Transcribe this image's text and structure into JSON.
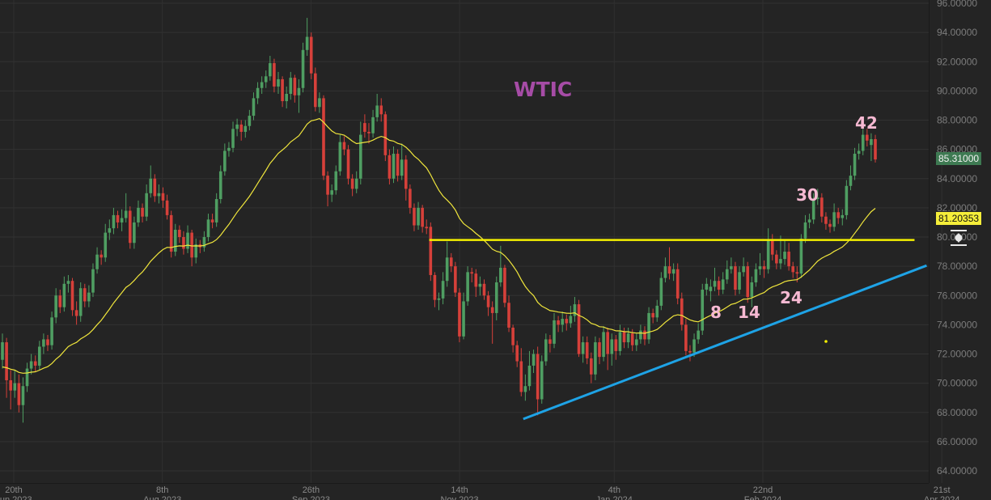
{
  "chart_data": {
    "type": "candlestick",
    "title": "WTIC",
    "ylim": [
      64,
      96
    ],
    "yticks": [
      "96.00000",
      "94.00000",
      "92.00000",
      "90.00000",
      "88.00000",
      "86.00000",
      "84.00000",
      "82.00000",
      "80.00000",
      "78.00000",
      "76.00000",
      "74.00000",
      "72.00000",
      "70.00000",
      "68.00000",
      "66.00000",
      "64.00000"
    ],
    "xticks": [
      {
        "day": "20th",
        "month": "Jun 2023",
        "date": "2023-06-20"
      },
      {
        "day": "8th",
        "month": "Aug 2023",
        "date": "2023-08-08"
      },
      {
        "day": "26th",
        "month": "Sep 2023",
        "date": "2023-09-26"
      },
      {
        "day": "14th",
        "month": "Nov 2023",
        "date": "2023-11-14"
      },
      {
        "day": "4th",
        "month": "Jan 2024",
        "date": "2024-01-04"
      },
      {
        "day": "22nd",
        "month": "Feb 2024",
        "date": "2024-02-22"
      },
      {
        "day": "21st",
        "month": "Apr 2024",
        "date": "2024-04-21"
      }
    ],
    "grid": true,
    "last_price": "85.31000",
    "moving_average_value": "81.20353",
    "colors": {
      "up": "#4f9e62",
      "down": "#d6403a",
      "moving_average": "#f0e63c",
      "resistance": "#f5f000",
      "trendline": "#1ea3e6",
      "title": "#a64ca6",
      "annotations": "#f6b9d2",
      "background": "#242424"
    },
    "resistance_line": {
      "price": 79.8,
      "from": "2023-11-04",
      "to": "2024-04-12"
    },
    "trend_line": {
      "from": {
        "date": "2023-12-05",
        "price": 67.55
      },
      "to": {
        "date": "2024-04-16",
        "price": 78.05
      }
    },
    "annotations": [
      "8",
      "14",
      "24",
      "30",
      "42"
    ],
    "candles": [
      [
        71.6,
        73.4,
        71.0,
        72.8
      ],
      [
        72.8,
        73.1,
        69.0,
        70.2
      ],
      [
        70.2,
        70.9,
        68.2,
        69.5
      ],
      [
        69.5,
        70.9,
        69.0,
        70.0
      ],
      [
        70.0,
        70.6,
        68.0,
        68.5
      ],
      [
        68.5,
        70.4,
        67.3,
        69.8
      ],
      [
        69.8,
        71.4,
        69.4,
        71.0
      ],
      [
        71.0,
        72.0,
        70.6,
        71.5
      ],
      [
        71.5,
        71.9,
        70.8,
        71.2
      ],
      [
        71.2,
        72.9,
        70.9,
        72.5
      ],
      [
        72.5,
        73.4,
        72.0,
        73.0
      ],
      [
        73.0,
        73.3,
        72.2,
        72.6
      ],
      [
        72.6,
        74.9,
        72.3,
        74.5
      ],
      [
        74.5,
        76.5,
        74.1,
        76.0
      ],
      [
        76.0,
        76.4,
        74.8,
        75.2
      ],
      [
        75.2,
        77.3,
        74.9,
        76.8
      ],
      [
        76.8,
        77.4,
        76.2,
        77.0
      ],
      [
        77.0,
        77.2,
        74.6,
        75.0
      ],
      [
        75.0,
        75.6,
        74.0,
        74.6
      ],
      [
        74.6,
        76.9,
        74.2,
        76.5
      ],
      [
        76.5,
        76.8,
        75.2,
        75.6
      ],
      [
        75.6,
        76.7,
        75.2,
        76.2
      ],
      [
        76.2,
        78.2,
        75.9,
        77.8
      ],
      [
        77.8,
        79.3,
        77.5,
        78.8
      ],
      [
        78.8,
        79.1,
        78.1,
        78.6
      ],
      [
        78.6,
        80.9,
        78.3,
        80.3
      ],
      [
        80.3,
        81.2,
        79.8,
        80.6
      ],
      [
        80.6,
        82.0,
        80.2,
        81.5
      ],
      [
        81.5,
        81.8,
        80.6,
        81.0
      ],
      [
        81.0,
        81.9,
        80.4,
        81.3
      ],
      [
        81.3,
        83.0,
        81.0,
        81.8
      ],
      [
        81.8,
        82.1,
        79.2,
        79.6
      ],
      [
        79.6,
        81.4,
        79.2,
        81.0
      ],
      [
        81.0,
        82.5,
        80.7,
        82.0
      ],
      [
        82.0,
        82.3,
        81.0,
        81.4
      ],
      [
        81.4,
        83.6,
        81.1,
        83.0
      ],
      [
        83.0,
        84.9,
        82.7,
        84.0
      ],
      [
        84.0,
        84.3,
        82.4,
        82.8
      ],
      [
        82.8,
        83.6,
        82.3,
        83.0
      ],
      [
        83.0,
        83.4,
        82.0,
        82.5
      ],
      [
        82.5,
        82.9,
        81.2,
        81.5
      ],
      [
        81.5,
        81.8,
        78.6,
        79.0
      ],
      [
        79.0,
        80.9,
        78.7,
        80.5
      ],
      [
        80.5,
        80.8,
        79.6,
        80.0
      ],
      [
        80.0,
        80.4,
        78.8,
        79.2
      ],
      [
        79.2,
        80.8,
        78.9,
        80.3
      ],
      [
        80.3,
        80.5,
        78.0,
        78.6
      ],
      [
        78.6,
        79.9,
        78.2,
        79.5
      ],
      [
        79.5,
        79.8,
        78.9,
        79.3
      ],
      [
        79.3,
        80.4,
        79.0,
        80.0
      ],
      [
        80.0,
        81.6,
        79.7,
        81.2
      ],
      [
        81.2,
        81.6,
        80.6,
        81.0
      ],
      [
        81.0,
        83.0,
        80.7,
        82.6
      ],
      [
        82.6,
        84.9,
        82.3,
        84.5
      ],
      [
        84.5,
        86.4,
        84.2,
        85.9
      ],
      [
        85.9,
        86.5,
        85.5,
        86.1
      ],
      [
        86.1,
        87.9,
        85.8,
        87.4
      ],
      [
        87.4,
        88.1,
        86.9,
        87.7
      ],
      [
        87.7,
        88.0,
        86.6,
        87.2
      ],
      [
        87.2,
        88.0,
        86.8,
        87.6
      ],
      [
        87.6,
        88.7,
        87.3,
        88.3
      ],
      [
        88.3,
        89.9,
        88.0,
        89.5
      ],
      [
        89.5,
        90.6,
        89.1,
        90.2
      ],
      [
        90.2,
        91.0,
        89.8,
        90.6
      ],
      [
        90.6,
        91.4,
        90.2,
        91.0
      ],
      [
        91.0,
        92.4,
        90.7,
        91.9
      ],
      [
        91.9,
        92.2,
        89.9,
        90.3
      ],
      [
        90.3,
        91.3,
        89.8,
        90.8
      ],
      [
        90.8,
        91.0,
        88.9,
        89.3
      ],
      [
        89.3,
        90.3,
        88.8,
        89.8
      ],
      [
        89.8,
        91.3,
        89.4,
        90.9
      ],
      [
        90.9,
        91.1,
        89.2,
        89.7
      ],
      [
        89.7,
        90.8,
        88.5,
        90.2
      ],
      [
        90.2,
        93.3,
        89.9,
        92.8
      ],
      [
        92.8,
        95.0,
        92.4,
        93.7
      ],
      [
        93.7,
        94.0,
        90.8,
        91.2
      ],
      [
        91.2,
        91.6,
        88.6,
        88.9
      ],
      [
        88.9,
        89.9,
        88.5,
        89.5
      ],
      [
        89.5,
        89.7,
        83.9,
        84.2
      ],
      [
        84.2,
        84.5,
        82.1,
        82.9
      ],
      [
        82.9,
        83.6,
        82.4,
        83.2
      ],
      [
        83.2,
        84.9,
        82.9,
        84.5
      ],
      [
        84.5,
        87.0,
        84.2,
        86.5
      ],
      [
        86.5,
        86.9,
        85.6,
        86.0
      ],
      [
        86.0,
        86.3,
        83.6,
        84.0
      ],
      [
        84.0,
        84.3,
        82.8,
        83.3
      ],
      [
        83.3,
        84.5,
        83.0,
        84.0
      ],
      [
        84.0,
        87.9,
        83.6,
        87.0
      ],
      [
        87.8,
        88.4,
        86.8,
        87.2
      ],
      [
        87.2,
        87.8,
        86.4,
        87.1
      ],
      [
        87.1,
        88.7,
        86.8,
        88.2
      ],
      [
        88.2,
        89.8,
        87.9,
        89.0
      ],
      [
        89.0,
        89.5,
        87.9,
        88.4
      ],
      [
        88.4,
        88.6,
        85.2,
        85.6
      ],
      [
        85.6,
        86.0,
        83.6,
        84.0
      ],
      [
        84.0,
        86.2,
        83.7,
        85.7
      ],
      [
        85.7,
        86.0,
        83.8,
        84.2
      ],
      [
        84.2,
        86.4,
        83.9,
        85.3
      ],
      [
        85.3,
        85.6,
        82.5,
        83.3
      ],
      [
        83.3,
        83.6,
        81.6,
        82.0
      ],
      [
        82.0,
        82.3,
        80.4,
        80.8
      ],
      [
        80.8,
        82.4,
        80.5,
        82.0
      ],
      [
        82.0,
        82.2,
        80.3,
        80.7
      ],
      [
        80.7,
        81.2,
        80.2,
        80.6
      ],
      [
        80.7,
        81.0,
        77.0,
        77.4
      ],
      [
        77.4,
        77.6,
        75.2,
        75.7
      ],
      [
        75.7,
        76.2,
        75.0,
        75.8
      ],
      [
        75.8,
        77.6,
        75.4,
        77.0
      ],
      [
        77.0,
        79.7,
        76.6,
        78.6
      ],
      [
        78.6,
        78.9,
        77.6,
        78.0
      ],
      [
        78.0,
        78.3,
        75.9,
        76.2
      ],
      [
        76.2,
        76.5,
        72.8,
        73.2
      ],
      [
        73.2,
        76.2,
        73.0,
        75.6
      ],
      [
        75.6,
        78.0,
        75.3,
        77.6
      ],
      [
        77.6,
        77.9,
        76.9,
        77.5
      ],
      [
        77.5,
        77.8,
        75.9,
        76.6
      ],
      [
        76.6,
        77.3,
        76.0,
        76.8
      ],
      [
        76.8,
        77.1,
        75.7,
        76.0
      ],
      [
        76.0,
        76.3,
        74.6,
        75.2
      ],
      [
        75.2,
        75.6,
        72.7,
        74.8
      ],
      [
        74.8,
        77.3,
        74.3,
        76.9
      ],
      [
        76.9,
        79.4,
        76.6,
        77.9
      ],
      [
        77.9,
        78.1,
        75.2,
        75.5
      ],
      [
        75.5,
        76.0,
        73.5,
        73.8
      ],
      [
        73.8,
        74.0,
        72.1,
        72.6
      ],
      [
        72.6,
        72.9,
        71.1,
        71.5
      ],
      [
        71.5,
        72.4,
        69.1,
        69.4
      ],
      [
        69.4,
        70.6,
        68.8,
        69.8
      ],
      [
        69.8,
        72.2,
        69.5,
        71.2
      ],
      [
        71.2,
        72.3,
        70.7,
        72.0
      ],
      [
        72.0,
        72.5,
        67.8,
        68.9
      ],
      [
        68.9,
        71.9,
        68.6,
        71.5
      ],
      [
        71.5,
        73.4,
        71.2,
        73.0
      ],
      [
        73.0,
        73.3,
        72.1,
        72.7
      ],
      [
        72.7,
        74.8,
        72.4,
        74.3
      ],
      [
        74.3,
        74.6,
        73.5,
        74.0
      ],
      [
        74.0,
        74.9,
        73.5,
        74.4
      ],
      [
        74.4,
        74.7,
        73.6,
        74.1
      ],
      [
        74.1,
        75.3,
        73.8,
        74.6
      ],
      [
        74.6,
        75.9,
        74.2,
        75.4
      ],
      [
        75.4,
        75.7,
        71.8,
        72.0
      ],
      [
        72.0,
        73.2,
        71.4,
        72.8
      ],
      [
        72.8,
        73.2,
        71.3,
        71.7
      ],
      [
        71.7,
        72.1,
        70.0,
        70.6
      ],
      [
        70.6,
        73.2,
        70.2,
        72.8
      ],
      [
        72.8,
        73.1,
        71.3,
        71.8
      ],
      [
        71.8,
        73.9,
        71.5,
        73.5
      ],
      [
        73.5,
        73.8,
        70.9,
        72.0
      ],
      [
        72.0,
        73.4,
        71.2,
        73.0
      ],
      [
        73.0,
        73.3,
        71.6,
        72.2
      ],
      [
        72.2,
        74.0,
        71.9,
        73.5
      ],
      [
        73.5,
        73.8,
        72.4,
        72.8
      ],
      [
        72.8,
        73.8,
        72.4,
        73.4
      ],
      [
        73.4,
        73.7,
        72.2,
        72.6
      ],
      [
        72.6,
        73.4,
        72.2,
        73.0
      ],
      [
        73.0,
        74.0,
        72.7,
        73.6
      ],
      [
        73.6,
        73.9,
        72.6,
        73.0
      ],
      [
        73.0,
        75.2,
        72.7,
        74.8
      ],
      [
        74.8,
        75.1,
        74.1,
        74.5
      ],
      [
        74.5,
        75.7,
        74.2,
        75.3
      ],
      [
        75.3,
        77.6,
        75.0,
        77.2
      ],
      [
        77.2,
        78.6,
        76.9,
        78.0
      ],
      [
        78.0,
        79.3,
        77.1,
        77.5
      ],
      [
        77.5,
        78.2,
        77.0,
        77.8
      ],
      [
        77.8,
        78.2,
        75.4,
        75.8
      ],
      [
        75.8,
        76.2,
        73.6,
        74.0
      ],
      [
        74.0,
        74.4,
        71.9,
        72.2
      ],
      [
        72.2,
        72.6,
        71.5,
        72.1
      ],
      [
        72.1,
        73.4,
        71.8,
        73.0
      ],
      [
        73.0,
        74.1,
        72.7,
        73.6
      ],
      [
        73.6,
        76.8,
        73.3,
        76.4
      ],
      [
        76.4,
        77.2,
        76.0,
        76.8
      ],
      [
        76.3,
        77.1,
        75.6,
        76.6
      ],
      [
        76.6,
        77.9,
        76.3,
        77.0
      ],
      [
        77.0,
        77.3,
        76.0,
        76.4
      ],
      [
        76.4,
        77.6,
        76.1,
        77.1
      ],
      [
        77.1,
        78.4,
        76.8,
        77.8
      ],
      [
        77.8,
        78.6,
        77.5,
        78.0
      ],
      [
        78.0,
        78.3,
        76.0,
        76.4
      ],
      [
        76.4,
        78.0,
        76.1,
        77.6
      ],
      [
        77.6,
        78.6,
        77.3,
        78.0
      ],
      [
        78.0,
        78.3,
        75.5,
        75.9
      ],
      [
        75.9,
        77.3,
        75.2,
        76.9
      ],
      [
        76.9,
        78.2,
        76.6,
        77.8
      ],
      [
        77.8,
        78.9,
        77.4,
        78.0
      ],
      [
        78.0,
        78.4,
        77.2,
        77.8
      ],
      [
        77.8,
        80.6,
        77.5,
        79.8
      ],
      [
        79.8,
        80.2,
        78.4,
        78.8
      ],
      [
        78.8,
        79.1,
        77.8,
        78.2
      ],
      [
        78.2,
        80.1,
        77.8,
        78.5
      ],
      [
        78.5,
        79.8,
        78.1,
        79.0
      ],
      [
        79.0,
        79.6,
        77.7,
        78.0
      ],
      [
        78.0,
        78.3,
        77.2,
        77.6
      ],
      [
        77.6,
        78.0,
        76.9,
        77.5
      ],
      [
        77.5,
        80.2,
        77.2,
        79.9
      ],
      [
        79.9,
        81.5,
        79.6,
        81.0
      ],
      [
        81.0,
        81.6,
        80.6,
        81.2
      ],
      [
        81.2,
        83.0,
        80.9,
        82.6
      ],
      [
        82.6,
        83.3,
        82.2,
        82.7
      ],
      [
        82.7,
        83.0,
        81.0,
        81.4
      ],
      [
        81.4,
        81.7,
        80.5,
        80.9
      ],
      [
        80.9,
        81.2,
        80.3,
        80.7
      ],
      [
        80.7,
        82.3,
        80.4,
        81.7
      ],
      [
        81.7,
        82.0,
        80.9,
        81.3
      ],
      [
        81.3,
        81.9,
        80.8,
        81.5
      ],
      [
        81.5,
        83.9,
        81.2,
        83.5
      ],
      [
        83.5,
        84.9,
        83.2,
        84.2
      ],
      [
        84.2,
        86.1,
        83.9,
        85.7
      ],
      [
        85.7,
        86.4,
        85.3,
        85.9
      ],
      [
        85.9,
        87.5,
        85.6,
        87.0
      ],
      [
        87.0,
        87.4,
        86.2,
        86.6
      ],
      [
        86.3,
        87.1,
        85.2,
        86.7
      ],
      [
        86.7,
        87.0,
        85.1,
        85.31
      ]
    ]
  }
}
